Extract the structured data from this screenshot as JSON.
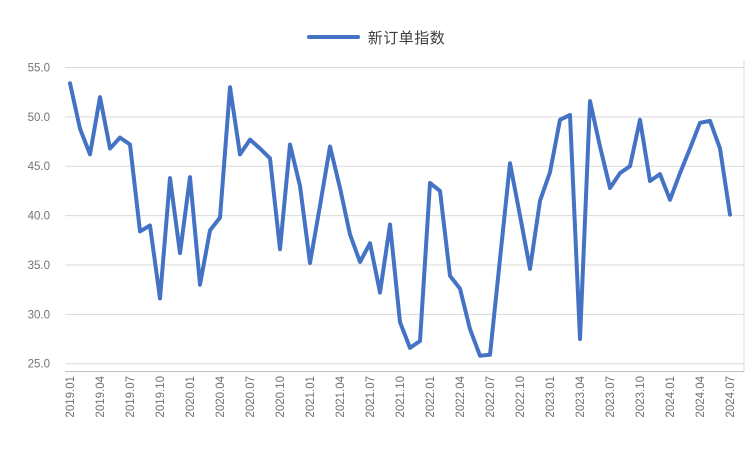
{
  "colors": {
    "series_blue": "#4472C4",
    "gridline": "#D9D9D9",
    "axis_line": "#BFBFBF",
    "plot_border": "#D9D9D9",
    "tick_text": "#737373",
    "legend_text": "#3F3F3F",
    "background": "#FFFFFF"
  },
  "chart_data": {
    "type": "line",
    "title": "",
    "xlabel": "",
    "ylabel": "",
    "legend_position": "top",
    "grid": true,
    "ylim": [
      25.0,
      55.0
    ],
    "y_tick_labels": [
      "55.0",
      "50.0",
      "45.0",
      "40.0",
      "35.0",
      "30.0",
      "25.0"
    ],
    "x_tick_interval": 3,
    "x_tick_labels": [
      "2019.01",
      "2019.04",
      "2019.07",
      "2019.10",
      "2020.01",
      "2020.04",
      "2020.07",
      "2020.10",
      "2021.01",
      "2021.04",
      "2021.07",
      "2021.10",
      "2022.01",
      "2022.04",
      "2022.07",
      "2022.10",
      "2023.01",
      "2023.04",
      "2023.07",
      "2023.10",
      "2024.01",
      "2024.04",
      "2024.07"
    ],
    "x": [
      "2019.01",
      "2019.02",
      "2019.03",
      "2019.04",
      "2019.05",
      "2019.06",
      "2019.07",
      "2019.08",
      "2019.09",
      "2019.10",
      "2019.11",
      "2019.12",
      "2020.01",
      "2020.02",
      "2020.03",
      "2020.04",
      "2020.05",
      "2020.06",
      "2020.07",
      "2020.08",
      "2020.09",
      "2020.10",
      "2020.11",
      "2020.12",
      "2021.01",
      "2021.02",
      "2021.03",
      "2021.04",
      "2021.05",
      "2021.06",
      "2021.07",
      "2021.08",
      "2021.09",
      "2021.10",
      "2021.11",
      "2021.12",
      "2022.01",
      "2022.02",
      "2022.03",
      "2022.04",
      "2022.05",
      "2022.06",
      "2022.07",
      "2022.08",
      "2022.09",
      "2022.10",
      "2022.11",
      "2022.12",
      "2023.01",
      "2023.02",
      "2023.03",
      "2023.04",
      "2023.05",
      "2023.06",
      "2023.07",
      "2023.08",
      "2023.09",
      "2023.10",
      "2023.11",
      "2023.12",
      "2024.01",
      "2024.02",
      "2024.03",
      "2024.04",
      "2024.05",
      "2024.06",
      "2024.07"
    ],
    "series": [
      {
        "name": "新订单指数",
        "color": "#4472C4",
        "values": [
          53.4,
          48.8,
          46.2,
          52.0,
          46.8,
          47.9,
          47.2,
          38.4,
          39.0,
          31.6,
          43.8,
          36.2,
          43.9,
          33.0,
          38.5,
          39.8,
          53.0,
          46.2,
          47.7,
          46.8,
          45.8,
          36.6,
          47.2,
          43.0,
          35.2,
          41.0,
          47.0,
          42.8,
          38.1,
          35.3,
          37.2,
          32.2,
          39.1,
          29.2,
          26.6,
          27.3,
          43.3,
          42.5,
          33.9,
          32.6,
          28.5,
          25.8,
          25.9,
          35.6,
          45.3,
          40.0,
          34.6,
          41.5,
          44.4,
          49.7,
          50.2,
          27.5,
          51.6,
          47.0,
          42.8,
          44.3,
          45.0,
          49.7,
          43.5,
          44.2,
          41.6,
          44.3,
          46.8,
          49.4,
          49.6,
          46.8,
          40.1
        ]
      }
    ]
  }
}
